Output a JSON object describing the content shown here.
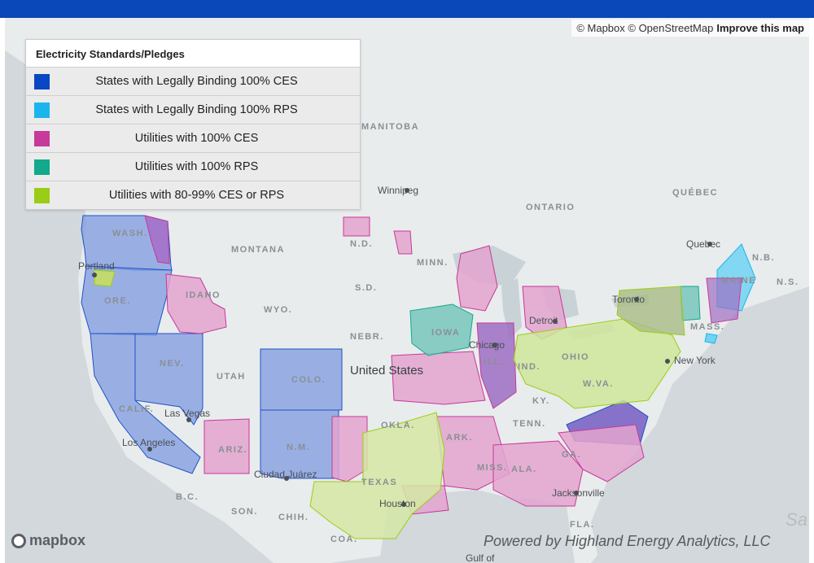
{
  "attribution": {
    "copyright": "© Mapbox © OpenStreetMap",
    "improve_link": "Improve this map"
  },
  "legend": {
    "title": "Electricity Standards/Pledges",
    "items": [
      {
        "label": "States with Legally Binding 100% CES",
        "color": "#0a47c4"
      },
      {
        "label": "States with Legally Binding 100% RPS",
        "color": "#1ab5ec"
      },
      {
        "label": "Utilities with 100% CES",
        "color": "#c7399a"
      },
      {
        "label": "Utilities with 100% RPS",
        "color": "#12a98c"
      },
      {
        "label": "Utilities with 80-99% CES or RPS",
        "color": "#9acd16"
      }
    ]
  },
  "map_labels": {
    "manitoba": "MANITOBA",
    "winnipeg": "Winnipeg",
    "ontario": "ONTARIO",
    "quebec_prov": "QUÉBEC",
    "quebec_city": "Quebec",
    "nb": "N.B.",
    "ns": "N.S.",
    "wash": "WASH.",
    "portland": "Portland",
    "ore": "ORE.",
    "idaho": "IDAHO",
    "montana": "MONTANA",
    "nd": "N.D.",
    "minn": "MINN.",
    "sd": "S.D.",
    "wyo": "WYO.",
    "nebr": "NEBR.",
    "iowa": "IOWA",
    "nev": "NEV.",
    "utah": "UTAH",
    "colo": "COLO.",
    "united_states": "United States",
    "calif": "CALIF.",
    "las_vegas": "Las Vegas",
    "los_angeles": "Los Angeles",
    "ariz": "ARIZ.",
    "nm": "N.M.",
    "ciudad_juarez": "Ciudad Juárez",
    "bc": "B.C.",
    "son": "SON.",
    "chih": "CHIH.",
    "coa": "COA.",
    "okla": "OKLA.",
    "ark": "ARK.",
    "texas": "TEXAS",
    "houston": "Houston",
    "miss": "MISS.",
    "ala": "ALA.",
    "ga": "GA.",
    "tenn": "TENN.",
    "ky": "KY.",
    "ill": "ILL.",
    "ind": "IND.",
    "ohio": "OHIO",
    "wva": "W.VA.",
    "chicago": "Chicago",
    "detroit": "Detroit",
    "toronto": "Toronto",
    "new_york": "New York",
    "mass": "MASS.",
    "maine": "MAINE",
    "jacksonville": "Jacksonville",
    "fla": "FLA.",
    "gulf": "Gulf of"
  },
  "footer": {
    "mapbox_logo": "mapbox",
    "credit": "Powered by Highland Energy Analytics, LLC",
    "corner_text": "Sa"
  }
}
